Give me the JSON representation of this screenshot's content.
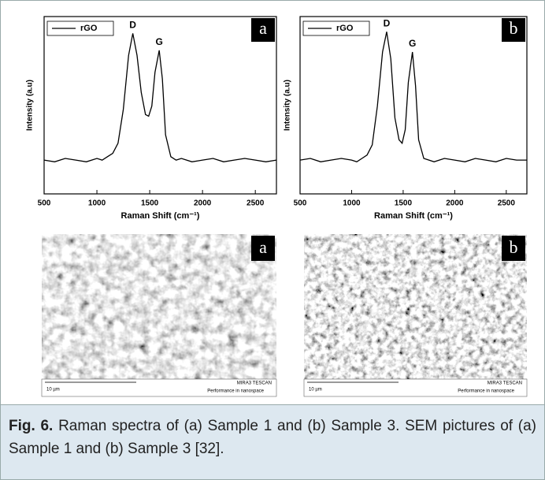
{
  "chart_data": [
    {
      "type": "line",
      "x_label": "Raman Shift (cm⁻¹)",
      "y_label": "Intensity (a.u)",
      "panel": "a",
      "peak_labels": [
        "D",
        "G"
      ],
      "x": [
        500,
        600,
        700,
        800,
        900,
        1000,
        1050,
        1100,
        1150,
        1200,
        1250,
        1300,
        1340,
        1380,
        1420,
        1460,
        1490,
        1520,
        1550,
        1590,
        1620,
        1650,
        1700,
        1750,
        1800,
        1900,
        2000,
        2100,
        2200,
        2300,
        2400,
        2500,
        2600,
        2700
      ],
      "series": [
        {
          "name": "rGO",
          "color": "#000000",
          "values": [
            20,
            19,
            21,
            20,
            19,
            21,
            20,
            22,
            24,
            30,
            50,
            82,
            95,
            82,
            60,
            47,
            46,
            52,
            72,
            85,
            68,
            35,
            22,
            20,
            21,
            19,
            20,
            21,
            19,
            20,
            21,
            20,
            19,
            20
          ]
        }
      ],
      "xlim": [
        500,
        2700
      ],
      "ylim": [
        0,
        105
      ],
      "xticks": [
        500,
        1000,
        1500,
        2000,
        2500
      ]
    },
    {
      "type": "line",
      "x_label": "Raman Shift (cm⁻¹)",
      "y_label": "Intensity (a.u)",
      "panel": "b",
      "peak_labels": [
        "D",
        "G"
      ],
      "x": [
        500,
        600,
        700,
        800,
        900,
        1000,
        1050,
        1100,
        1150,
        1200,
        1250,
        1300,
        1340,
        1380,
        1420,
        1460,
        1490,
        1520,
        1550,
        1590,
        1620,
        1650,
        1700,
        1750,
        1800,
        1900,
        2000,
        2100,
        2200,
        2300,
        2400,
        2500,
        2600,
        2700
      ],
      "series": [
        {
          "name": "rGO",
          "color": "#000000",
          "values": [
            20,
            21,
            19,
            20,
            21,
            20,
            19,
            21,
            23,
            29,
            52,
            84,
            96,
            80,
            45,
            32,
            30,
            38,
            66,
            84,
            64,
            32,
            21,
            20,
            19,
            21,
            20,
            19,
            21,
            20,
            19,
            21,
            20,
            20
          ]
        }
      ],
      "xlim": [
        500,
        2700
      ],
      "ylim": [
        0,
        105
      ],
      "xticks": [
        500,
        1000,
        1500,
        2000,
        2500
      ]
    }
  ],
  "sem_images": [
    {
      "letter": "a",
      "scale_bar": "10 µm",
      "brand": "MIRA3 TESCAN",
      "tagline": "Performance in nanospace"
    },
    {
      "letter": "b",
      "scale_bar": "10 µm",
      "brand": "MIRA3 TESCAN",
      "tagline": "Performance in nanospace"
    }
  ],
  "caption": {
    "label": "Fig. 6.",
    "text": "Raman spectra of (a) Sample 1 and (b) Sample 3. SEM pictures of (a) Sample 1 and (b) Sample 3 [32]."
  }
}
